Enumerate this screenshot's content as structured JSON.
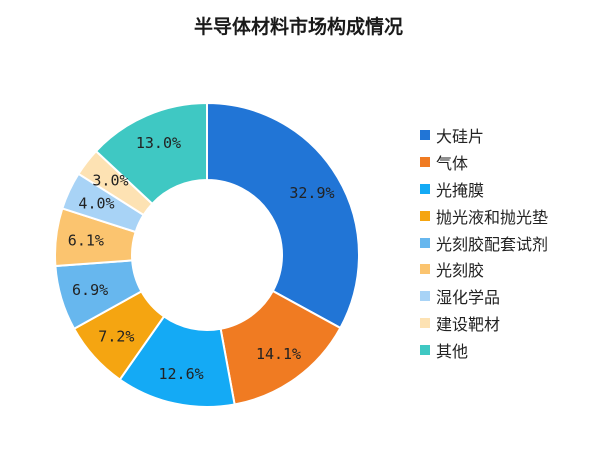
{
  "chart_data": {
    "type": "pie",
    "title": "半导体材料市场构成情况",
    "categories": [
      "大硅片",
      "气体",
      "光掩膜",
      "抛光液和抛光垫",
      "光刻胶配套试剂",
      "光刻胶",
      "湿化学品",
      "建设靶材",
      "其他"
    ],
    "values": [
      32.9,
      14.1,
      12.6,
      7.2,
      6.9,
      6.1,
      4.0,
      3.0,
      13.0
    ],
    "value_labels": [
      "32.9%",
      "14.1%",
      "12.6%",
      "7.2%",
      "6.9%",
      "6.1%",
      "4.0%",
      "3.0%",
      "13.0%"
    ],
    "colors": [
      "#2175d6",
      "#f07b22",
      "#14aaf5",
      "#f5a511",
      "#67b7ee",
      "#fbc46f",
      "#a8d3f6",
      "#fde2b3",
      "#3fc8c3"
    ],
    "donut": true,
    "legend_position": "right"
  }
}
